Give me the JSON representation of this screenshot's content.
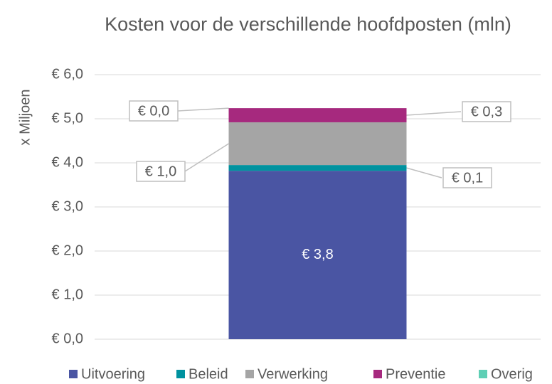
{
  "chart_data": {
    "type": "stacked_bar",
    "title": "Kosten voor de verschillende hoofdposten (mln)",
    "y_label": "x Miljoen",
    "categories": [
      null
    ],
    "series": [
      {
        "name": "Uitvoering",
        "color": "#4a55a3",
        "values": [
          3.82
        ],
        "value_labels": [
          "€ 3,8"
        ]
      },
      {
        "name": "Beleid",
        "color": "#00929f",
        "values": [
          0.13
        ],
        "value_labels": [
          "€ 0,1"
        ]
      },
      {
        "name": "Verwerking",
        "color": "#a5a5a5",
        "values": [
          0.97
        ],
        "value_labels": [
          "€ 1,0"
        ]
      },
      {
        "name": "Preventie",
        "color": "#a6297e",
        "values": [
          0.32
        ],
        "value_labels": [
          "€ 0,3"
        ]
      },
      {
        "name": "Overig",
        "color": "#5fcfb5",
        "values": [
          0
        ],
        "value_labels": [
          "€ 0,0"
        ]
      }
    ],
    "ylim": [
      0,
      6
    ],
    "yticks": [
      {
        "value": 0,
        "label": "€ 0,0"
      },
      {
        "value": 1,
        "label": "€ 1,0"
      },
      {
        "value": 2,
        "label": "€ 2,0"
      },
      {
        "value": 3,
        "label": "€ 3,0"
      },
      {
        "value": 4,
        "label": "€ 4,0"
      },
      {
        "value": 5,
        "label": "€ 5,0"
      },
      {
        "value": 6,
        "label": "€ 6,0"
      }
    ],
    "grid": true,
    "legend": "bottom"
  }
}
